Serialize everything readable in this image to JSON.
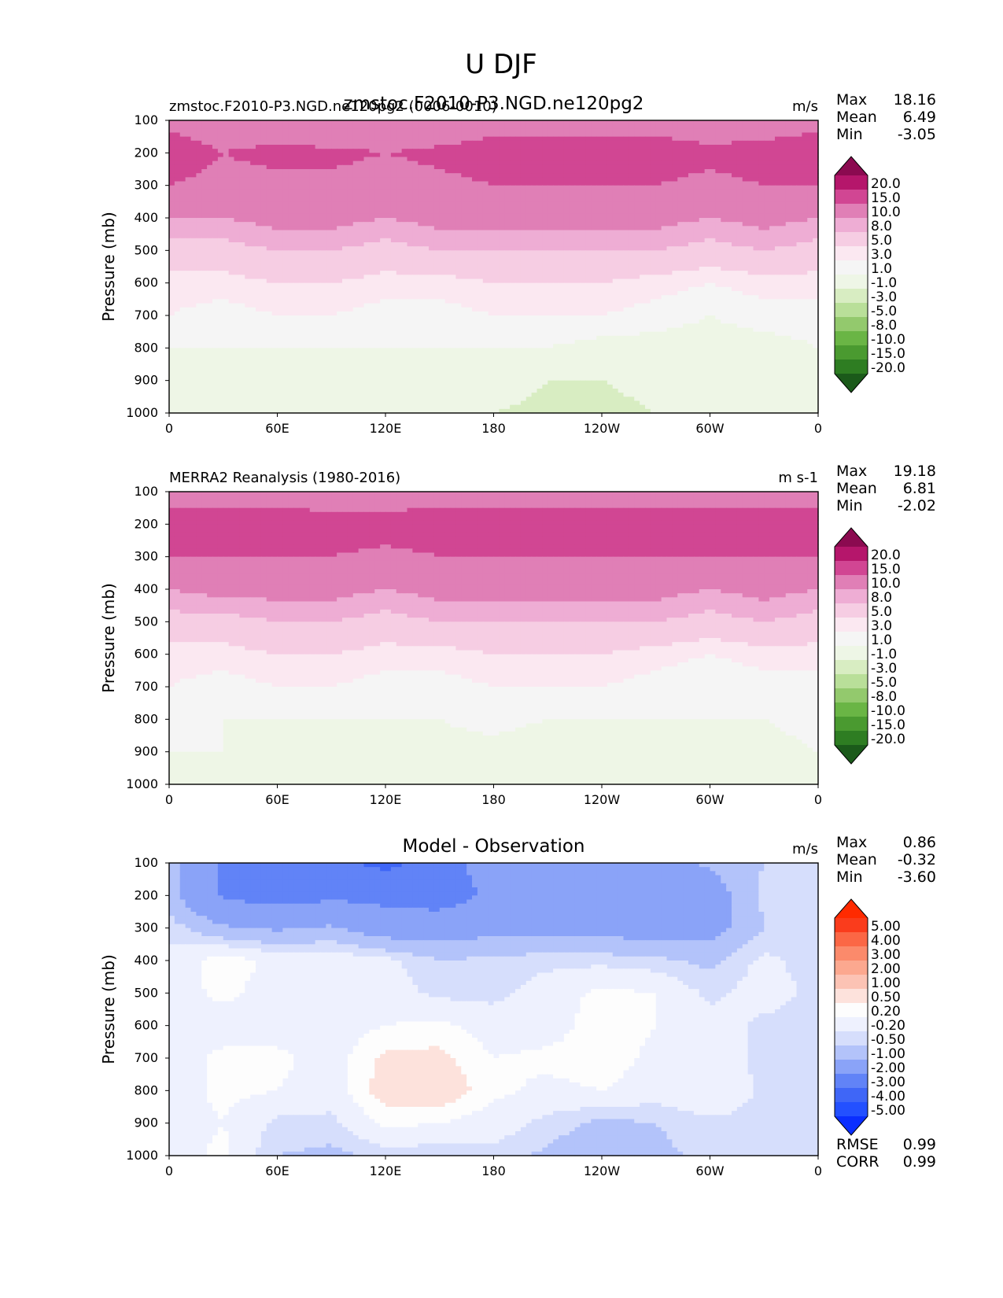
{
  "figure": {
    "title": "U DJF"
  },
  "colors": {
    "seq_levels": [
      -20,
      -15,
      -10,
      -8,
      -5,
      -3,
      -1,
      1,
      3,
      5,
      8,
      10,
      15,
      20
    ],
    "seq_fills": [
      "#1b5a1a",
      "#2e7d22",
      "#4a9a30",
      "#6ab545",
      "#93c96d",
      "#b9df99",
      "#d8edc2",
      "#eef6e6",
      "#f5f5f5",
      "#fbe8f1",
      "#f6cde3",
      "#eeadd4",
      "#e07fb6",
      "#d14693",
      "#b5166b",
      "#8b0a50"
    ],
    "diff_levels": [
      -5,
      -4,
      -3,
      -2,
      -1,
      -0.5,
      -0.2,
      0.2,
      0.5,
      1,
      2,
      3,
      4,
      5
    ],
    "diff_fills": [
      "#0a2eff",
      "#2350ff",
      "#3f66f7",
      "#6183f7",
      "#8aa3f8",
      "#b3c3fa",
      "#d6defc",
      "#eef1fe",
      "#fdfdfd",
      "#fde2dc",
      "#fcc3b4",
      "#fca88f",
      "#fb8a6b",
      "#fb6745",
      "#fa3c1c",
      "#ff2a00"
    ]
  },
  "panels": [
    {
      "left_title": "zmstoc.F2010-P3.NGD.ne120pg2 (0006-0010)",
      "center_title": "zmstoc.F2010-P3.NGD.ne120pg2",
      "units": "m/s",
      "stats": {
        "max_label": "Max",
        "max": "18.16",
        "mean_label": "Mean",
        "mean": "6.49",
        "min_label": "Min",
        "min": "-3.05"
      }
    },
    {
      "left_title": "MERRA2 Reanalysis (1980-2016)",
      "center_title": "",
      "units": "m s-1",
      "stats": {
        "max_label": "Max",
        "max": "19.18",
        "mean_label": "Mean",
        "mean": "6.81",
        "min_label": "Min",
        "min": "-2.02"
      }
    },
    {
      "left_title": "",
      "center_title": "Model - Observation",
      "units": "m/s",
      "stats": {
        "max_label": "Max",
        "max": "0.86",
        "mean_label": "Mean",
        "mean": "-0.32",
        "min_label": "Min",
        "min": "-3.60"
      },
      "metrics": {
        "rmse_label": "RMSE",
        "rmse": "0.99",
        "corr_label": "CORR",
        "corr": "0.99"
      }
    }
  ],
  "chart_data": [
    {
      "type": "heatmap",
      "title": "zmstoc.F2010-P3.NGD.ne120pg2",
      "ylabel": "Pressure (mb)",
      "xlabel": "",
      "x_ticks": [
        "0",
        "60E",
        "120E",
        "180",
        "120W",
        "60W",
        "0"
      ],
      "y_ticks": [
        "100",
        "200",
        "300",
        "400",
        "500",
        "600",
        "700",
        "800",
        "900",
        "1000"
      ],
      "xlim": [
        0,
        360
      ],
      "ylim": [
        1000,
        100
      ],
      "colorbar_labels": [
        "20.0",
        "15.0",
        "10.0",
        "8.0",
        "5.0",
        "3.0",
        "1.0",
        "-1.0",
        "-3.0",
        "-5.0",
        "-8.0",
        "-10.0",
        "-15.0",
        "-20.0"
      ],
      "x": [
        0,
        30,
        60,
        90,
        120,
        150,
        180,
        210,
        240,
        270,
        300,
        330,
        360
      ],
      "y": [
        100,
        200,
        300,
        400,
        500,
        600,
        700,
        800,
        900,
        1000
      ],
      "values": [
        [
          14,
          13,
          12,
          10,
          10,
          11,
          13,
          13,
          13,
          13,
          12,
          12,
          14
        ],
        [
          17,
          15,
          16,
          16,
          15,
          16,
          17,
          17,
          17,
          17,
          16,
          17,
          17
        ],
        [
          15,
          14,
          14,
          14,
          13,
          14,
          15,
          15,
          15,
          15,
          14,
          15,
          15
        ],
        [
          10,
          10,
          11,
          11,
          10,
          11,
          11,
          11,
          11,
          11,
          10,
          11,
          10
        ],
        [
          7,
          7,
          8,
          8,
          7,
          8,
          8,
          8,
          8,
          8,
          7,
          8,
          7
        ],
        [
          4,
          4,
          5,
          5,
          4,
          4,
          5,
          5,
          5,
          4,
          3,
          4,
          4
        ],
        [
          3,
          2,
          3,
          3,
          2,
          2,
          3,
          3,
          3,
          2,
          1,
          2,
          2
        ],
        [
          1,
          1,
          1,
          1,
          1,
          1,
          1,
          1,
          0,
          0,
          0,
          0,
          1
        ],
        [
          0,
          0,
          0,
          0,
          0,
          0,
          0,
          -1,
          -1,
          -0.5,
          0,
          0,
          0
        ],
        [
          1,
          0,
          -1,
          0,
          0,
          0,
          -1,
          -1.5,
          -1.5,
          -1,
          0,
          -1,
          0
        ]
      ]
    },
    {
      "type": "heatmap",
      "title": "MERRA2 Reanalysis (1980-2016)",
      "ylabel": "Pressure (mb)",
      "xlabel": "",
      "x_ticks": [
        "0",
        "60E",
        "120E",
        "180",
        "120W",
        "60W",
        "0"
      ],
      "y_ticks": [
        "100",
        "200",
        "300",
        "400",
        "500",
        "600",
        "700",
        "800",
        "900",
        "1000"
      ],
      "xlim": [
        0,
        360
      ],
      "ylim": [
        1000,
        100
      ],
      "colorbar_labels": [
        "20.0",
        "15.0",
        "10.0",
        "8.0",
        "5.0",
        "3.0",
        "1.0",
        "-1.0",
        "-3.0",
        "-5.0",
        "-8.0",
        "-10.0",
        "-15.0",
        "-20.0"
      ],
      "x": [
        0,
        30,
        60,
        90,
        120,
        150,
        180,
        210,
        240,
        270,
        300,
        330,
        360
      ],
      "y": [
        100,
        200,
        300,
        400,
        500,
        600,
        700,
        800,
        900,
        1000
      ],
      "values": [
        [
          13,
          13,
          13,
          12,
          12,
          13,
          13,
          13,
          13,
          13,
          13,
          13,
          13
        ],
        [
          17,
          17,
          17,
          17,
          17,
          17,
          17,
          17,
          17,
          17,
          17,
          17,
          17
        ],
        [
          15,
          15,
          15,
          15,
          14,
          15,
          15,
          15,
          15,
          15,
          15,
          15,
          15
        ],
        [
          10,
          11,
          11,
          11,
          10,
          11,
          11,
          11,
          11,
          11,
          10,
          11,
          10
        ],
        [
          7,
          7,
          8,
          8,
          7,
          8,
          8,
          8,
          8,
          8,
          7,
          8,
          7
        ],
        [
          4,
          4,
          5,
          5,
          4,
          4,
          5,
          5,
          5,
          4,
          3,
          4,
          4
        ],
        [
          3,
          2,
          3,
          3,
          2,
          2,
          3,
          3,
          3,
          2,
          1,
          2,
          2
        ],
        [
          2,
          1,
          1,
          1,
          1,
          1,
          2,
          1,
          1,
          1,
          1,
          1,
          2
        ],
        [
          1,
          1,
          0,
          0,
          0,
          0,
          0,
          -1,
          -1,
          0,
          0,
          0,
          1
        ],
        [
          1,
          0,
          0,
          0,
          0,
          0,
          0,
          -1,
          -1,
          0,
          0,
          -1,
          0
        ]
      ]
    },
    {
      "type": "heatmap",
      "title": "Model - Observation",
      "ylabel": "Pressure (mb)",
      "xlabel": "",
      "x_ticks": [
        "0",
        "60E",
        "120E",
        "180",
        "120W",
        "60W",
        "0"
      ],
      "y_ticks": [
        "100",
        "200",
        "300",
        "400",
        "500",
        "600",
        "700",
        "800",
        "900",
        "1000"
      ],
      "xlim": [
        0,
        360
      ],
      "ylim": [
        1000,
        100
      ],
      "colorbar_labels": [
        "5.00",
        "4.00",
        "3.00",
        "2.00",
        "1.00",
        "0.50",
        "0.20",
        "-0.20",
        "-0.50",
        "-1.00",
        "-2.00",
        "-3.00",
        "-4.00",
        "-5.00"
      ],
      "x": [
        0,
        30,
        60,
        90,
        120,
        150,
        180,
        210,
        240,
        270,
        300,
        330,
        360
      ],
      "y": [
        100,
        200,
        300,
        400,
        500,
        600,
        700,
        800,
        900,
        1000
      ],
      "values": [
        [
          -0.6,
          -2.2,
          -2.6,
          -2.8,
          -3.2,
          -2.6,
          -1.4,
          -1.3,
          -1.4,
          -1.2,
          -0.9,
          -0.5,
          -0.3
        ],
        [
          -0.8,
          -2.1,
          -2.4,
          -2.2,
          -2.3,
          -2.5,
          -1.8,
          -1.6,
          -1.9,
          -1.8,
          -1.4,
          -0.4,
          -0.3
        ],
        [
          -0.3,
          -0.9,
          -1.1,
          -0.9,
          -1.4,
          -1.4,
          -1.2,
          -1.2,
          -1.3,
          -1.3,
          -1.3,
          -0.5,
          -0.4
        ],
        [
          -0.1,
          0.4,
          0.1,
          0.1,
          -0.1,
          -0.5,
          -0.4,
          -0.3,
          -0.3,
          -0.4,
          -0.6,
          -0.1,
          -0.4
        ],
        [
          0.0,
          0.3,
          0.0,
          0.0,
          0.0,
          -0.3,
          -0.3,
          0.0,
          0.3,
          0.2,
          -0.3,
          0.0,
          -0.3
        ],
        [
          0.0,
          0.0,
          0.0,
          0.0,
          0.2,
          0.3,
          0.0,
          0.0,
          0.4,
          0.2,
          0.0,
          -0.3,
          -0.4
        ],
        [
          0.0,
          0.3,
          0.3,
          0.0,
          0.6,
          0.6,
          0.2,
          0.3,
          0.4,
          0.1,
          0.0,
          -0.3,
          -0.3
        ],
        [
          0.0,
          0.3,
          0.2,
          0.0,
          0.7,
          0.8,
          0.3,
          0.1,
          0.2,
          0.0,
          0.2,
          -0.3,
          -0.3
        ],
        [
          0.0,
          0.2,
          -0.3,
          -0.3,
          0.3,
          0.2,
          0.0,
          -0.3,
          -0.6,
          -0.5,
          -0.3,
          -0.3,
          -0.2
        ],
        [
          0.0,
          0.3,
          -0.5,
          -0.6,
          -0.4,
          -0.4,
          -0.3,
          -0.6,
          -0.9,
          -0.6,
          -0.4,
          -0.3,
          -0.2
        ]
      ]
    }
  ]
}
